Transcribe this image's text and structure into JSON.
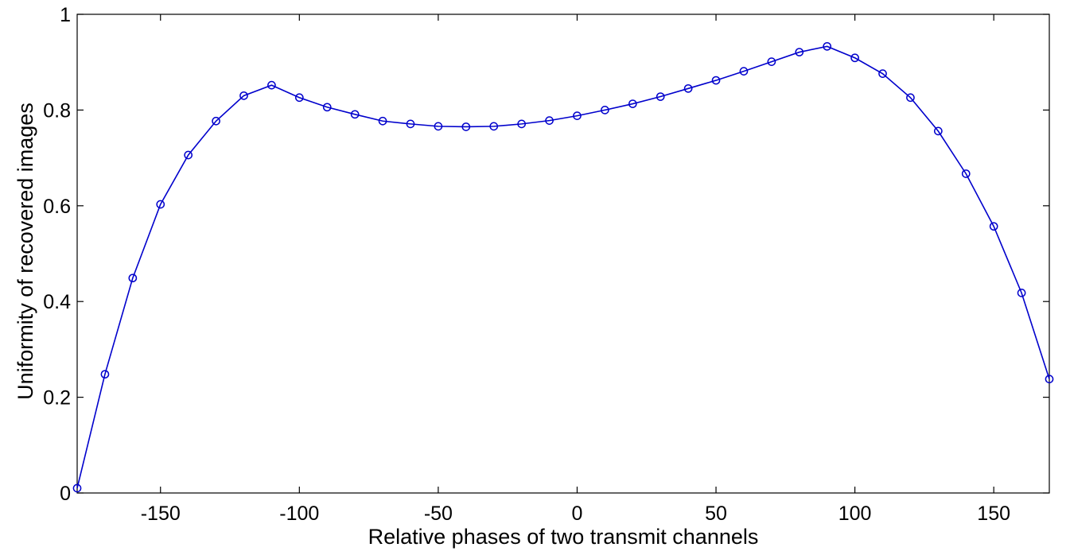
{
  "chart_data": {
    "type": "line",
    "title": "",
    "xlabel": "Relative phases of two transmit channels",
    "ylabel": "Uniformity of recovered images",
    "xlim": [
      -180,
      170
    ],
    "ylim": [
      0,
      1
    ],
    "xticks": [
      -150,
      -100,
      -50,
      0,
      50,
      100,
      150
    ],
    "yticks": [
      0,
      0.2,
      0.4,
      0.6,
      0.8,
      1
    ],
    "xtick_labels": [
      "-150",
      "-100",
      "-50",
      "0",
      "50",
      "100",
      "150"
    ],
    "ytick_labels": [
      "0",
      "0.2",
      "0.4",
      "0.6",
      "0.8",
      "1"
    ],
    "grid": false,
    "marker": "circle",
    "line_color": "#0000CC",
    "series": [
      {
        "x": [
          -180,
          -170,
          -160,
          -150,
          -140,
          -130,
          -120,
          -110,
          -100,
          -90,
          -80,
          -70,
          -60,
          -50,
          -40,
          -30,
          -20,
          -10,
          0,
          10,
          20,
          30,
          40,
          50,
          60,
          70,
          80,
          90,
          100,
          110,
          120,
          130,
          140,
          150,
          160,
          170
        ],
        "y": [
          0.01,
          0.248,
          0.449,
          0.603,
          0.706,
          0.777,
          0.83,
          0.852,
          0.826,
          0.806,
          0.791,
          0.777,
          0.771,
          0.766,
          0.765,
          0.766,
          0.771,
          0.778,
          0.788,
          0.8,
          0.813,
          0.828,
          0.845,
          0.862,
          0.881,
          0.901,
          0.921,
          0.933,
          0.909,
          0.876,
          0.826,
          0.756,
          0.667,
          0.557,
          0.418,
          0.238
        ]
      }
    ]
  }
}
